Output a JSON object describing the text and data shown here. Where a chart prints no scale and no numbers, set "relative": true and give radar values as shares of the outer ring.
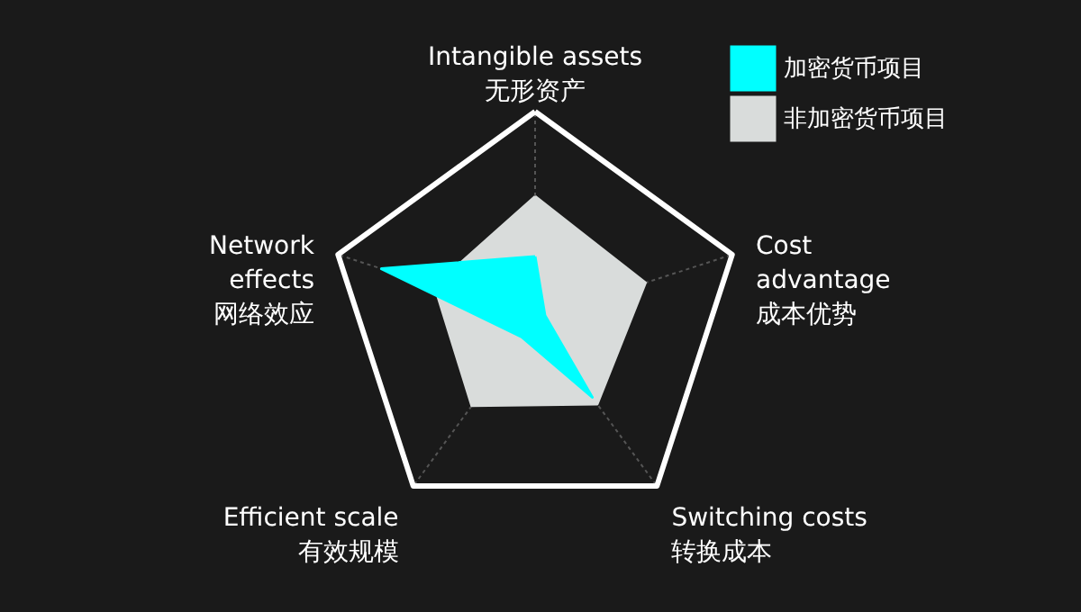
{
  "chart_data": {
    "type": "radar",
    "relative": true,
    "grid": true,
    "legend": "top right",
    "categories": [
      "Intangible assets\n无形资产",
      "Cost\nadvantage\n成本优势",
      "Switching costs\n转换成本",
      "Efficient scale\n有效规模",
      "Network\neffects\n网络效应"
    ],
    "series": [
      {
        "name": "加密货币项目",
        "color": "#00ffff",
        "values": [
          0.3,
          0.05,
          0.47,
          0.11,
          0.78
        ]
      },
      {
        "name": "非加密货币项目",
        "color": "#d9dcdb",
        "values": [
          0.59,
          0.56,
          0.51,
          0.52,
          0.51
        ]
      }
    ]
  }
}
